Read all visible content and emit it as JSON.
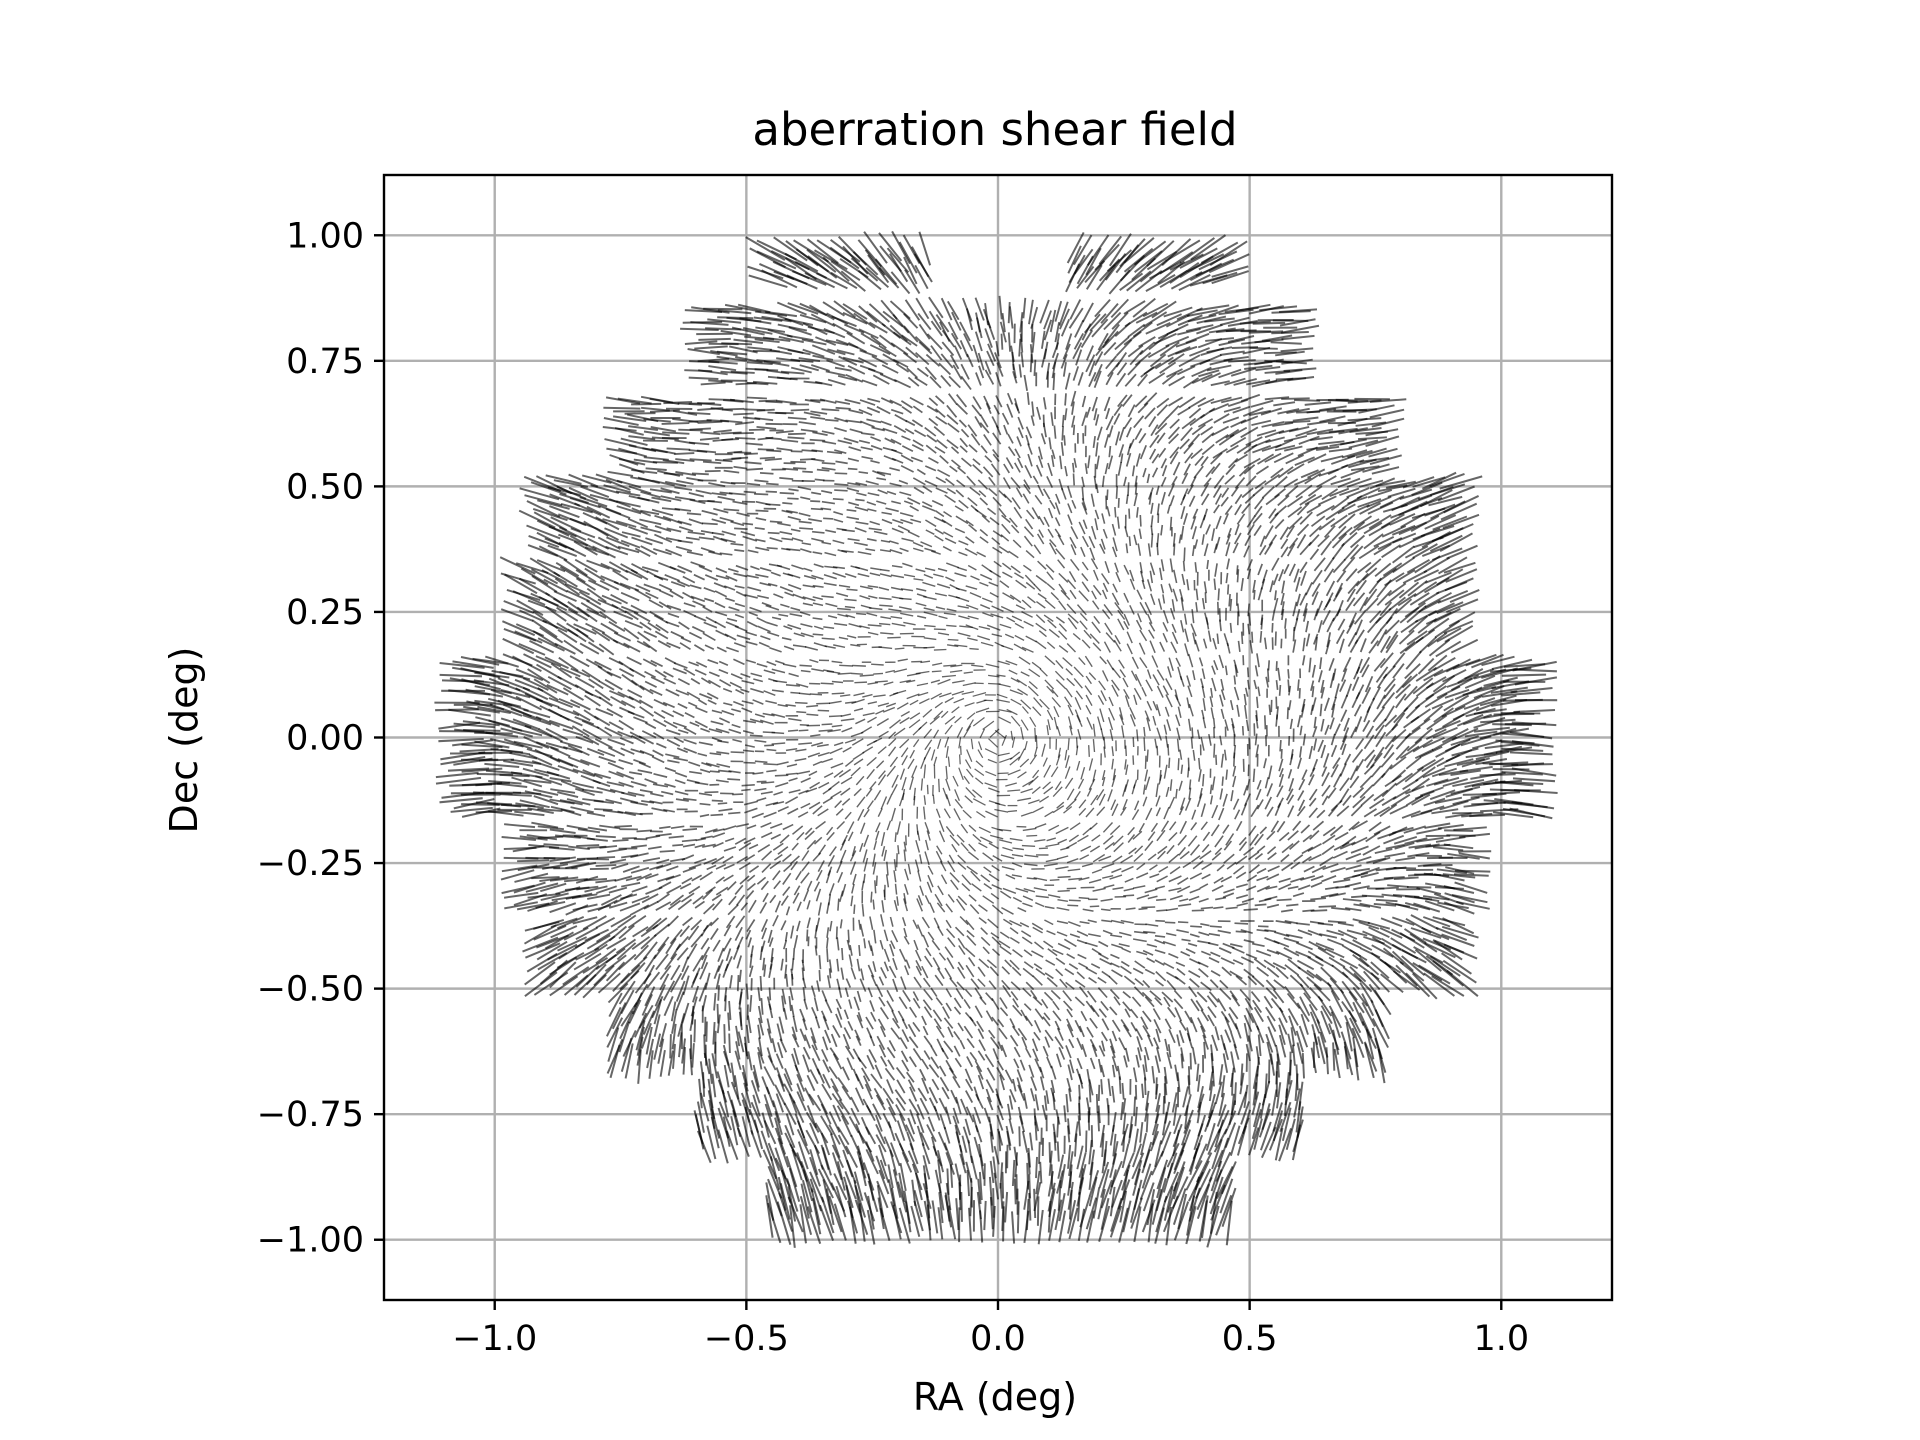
{
  "chart_data": {
    "type": "quiver",
    "title": "aberration shear field",
    "xlabel": "RA (deg)",
    "ylabel": "Dec (deg)",
    "xlim": [
      -1.22,
      1.22
    ],
    "ylim": [
      -1.12,
      1.12
    ],
    "xticks": [
      -1.0,
      -0.5,
      0.0,
      0.5,
      1.0
    ],
    "xtick_labels": [
      "−1.0",
      "−0.5",
      "0.0",
      "0.5",
      "1.0"
    ],
    "yticks": [
      -1.0,
      -0.75,
      -0.5,
      -0.25,
      0.0,
      0.25,
      0.5,
      0.75,
      1.0
    ],
    "ytick_labels": [
      "−1.00",
      "−0.75",
      "−0.50",
      "−0.25",
      "0.00",
      "0.25",
      "0.50",
      "0.75",
      "1.00"
    ],
    "grid": true,
    "whisker_color": "#000000",
    "field": {
      "shape": "circular focal plane of rectangular CCD tiles",
      "radius_deg": 1.08,
      "rows": [
        {
          "dec": [
            0.9,
            0.99
          ],
          "ra": [
            [
              -0.47,
              -0.13
            ],
            [
              0.14,
              0.46
            ]
          ]
        },
        {
          "dec": [
            0.7,
            0.85
          ],
          "ra": [
            [
              -0.6,
              0.6
            ]
          ]
        },
        {
          "dec": [
            0.52,
            0.68
          ],
          "ra": [
            [
              -0.76,
              0.77
            ]
          ]
        },
        {
          "dec": [
            0.36,
            0.51
          ],
          "ra": [
            [
              -0.92,
              0.93
            ]
          ]
        },
        {
          "dec": [
            0.17,
            0.35
          ],
          "ra": [
            [
              -0.96,
              0.93
            ]
          ]
        },
        {
          "dec": [
            -0.16,
            0.16
          ],
          "ra": [
            [
              -1.08,
              1.08
            ]
          ]
        },
        {
          "dec": [
            -0.35,
            -0.17
          ],
          "ra": [
            [
              -0.96,
              0.96
            ]
          ]
        },
        {
          "dec": [
            -0.5,
            -0.36
          ],
          "ra": [
            [
              -0.92,
              0.92
            ]
          ]
        },
        {
          "dec": [
            -0.66,
            -0.51
          ],
          "ra": [
            [
              -0.77,
              0.77
            ]
          ]
        },
        {
          "dec": [
            -0.82,
            -0.67
          ],
          "ra": [
            [
              -0.6,
              0.61
            ]
          ]
        },
        {
          "dec": [
            -0.98,
            -0.83
          ],
          "ra": [
            [
              -0.46,
              0.46
            ]
          ]
        }
      ]
    }
  }
}
